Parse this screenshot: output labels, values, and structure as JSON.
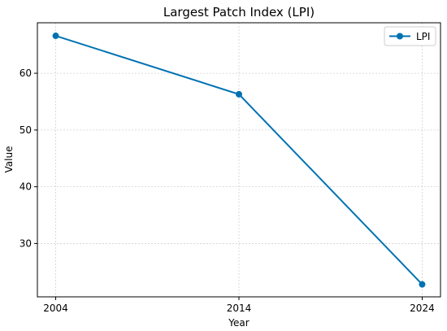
{
  "chart_data": {
    "type": "line",
    "title": "Largest Patch Index (LPI)",
    "xlabel": "Year",
    "ylabel": "Value",
    "x": [
      2004,
      2014,
      2024
    ],
    "x_tick_labels": [
      "2004",
      "2014",
      "2024"
    ],
    "y_ticks": [
      30,
      40,
      50,
      60
    ],
    "y_tick_labels": [
      "30",
      "40",
      "50",
      "60"
    ],
    "xlim": [
      2003,
      2025
    ],
    "ylim": [
      20.6,
      68.9
    ],
    "grid": true,
    "legend_position": "top-right",
    "series": [
      {
        "name": "LPI",
        "values": [
          66.6,
          56.3,
          22.8
        ],
        "color": "#0072b2",
        "marker": "circle"
      }
    ]
  }
}
